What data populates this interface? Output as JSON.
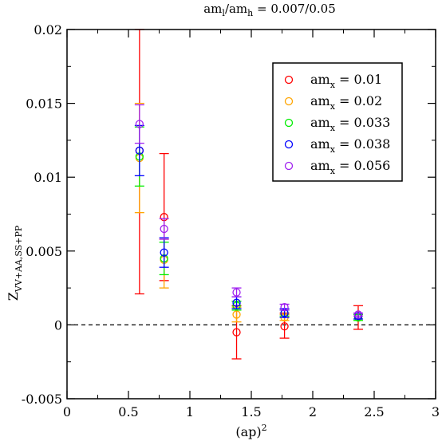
{
  "chart_data": {
    "type": "scatter",
    "title": {
      "prefix": "am",
      "sub1": "l",
      "mid": "/am",
      "sub2": "h",
      "suffix": " = 0.007/0.05"
    },
    "xlabel": {
      "base": "(ap)",
      "sup": "2"
    },
    "ylabel": {
      "base": "Z",
      "sub": "VV+AA,SS+PP"
    },
    "xlim": [
      0,
      3
    ],
    "ylim": [
      -0.005,
      0.02
    ],
    "x_ticks": [
      0,
      0.5,
      1,
      1.5,
      2,
      2.5,
      3
    ],
    "x_tick_labels": [
      "0",
      "0.5",
      "1",
      "1.5",
      "2",
      "2.5",
      "3"
    ],
    "y_ticks": [
      -0.005,
      0,
      0.005,
      0.01,
      0.015,
      0.02
    ],
    "y_tick_labels": [
      "-0.005",
      "0",
      "0.005",
      "0.01",
      "0.015",
      "0.02"
    ],
    "reference_line": {
      "y": 0,
      "style": "dashed"
    },
    "legend_position": "top-right",
    "series": [
      {
        "label_base": "am",
        "label_sub": "x",
        "label_value": " = 0.01",
        "color": "#ff0000",
        "points": [
          {
            "x": 0.59,
            "y": 0.0118,
            "err_lo": 0.0097,
            "err_hi": 0.0082
          },
          {
            "x": 0.79,
            "y": 0.0073,
            "err_lo": 0.0043,
            "err_hi": 0.0043
          },
          {
            "x": 1.38,
            "y": -0.0005,
            "err_lo": 0.0018,
            "err_hi": 0.0018
          },
          {
            "x": 1.77,
            "y": -0.0001,
            "err_lo": 0.0008,
            "err_hi": 0.0009
          },
          {
            "x": 2.37,
            "y": 0.0005,
            "err_lo": 0.0008,
            "err_hi": 0.0008
          }
        ]
      },
      {
        "label_base": "am",
        "label_sub": "x",
        "label_value": " = 0.02",
        "color": "#ffa500",
        "points": [
          {
            "x": 0.59,
            "y": 0.0113,
            "err_lo": 0.0037,
            "err_hi": 0.0037
          },
          {
            "x": 0.79,
            "y": 0.0044,
            "err_lo": 0.0019,
            "err_hi": 0.0014
          },
          {
            "x": 1.38,
            "y": 0.0007,
            "err_lo": 0.0005,
            "err_hi": 0.0005
          },
          {
            "x": 1.77,
            "y": 0.0005,
            "err_lo": 0.0002,
            "err_hi": 0.0002
          },
          {
            "x": 2.37,
            "y": 0.0005,
            "err_lo": 0.0002,
            "err_hi": 0.0002
          }
        ]
      },
      {
        "label_base": "am",
        "label_sub": "x",
        "label_value": " = 0.033",
        "color": "#00ee00",
        "points": [
          {
            "x": 0.59,
            "y": 0.0114,
            "err_lo": 0.002,
            "err_hi": 0.002
          },
          {
            "x": 0.79,
            "y": 0.0045,
            "err_lo": 0.0011,
            "err_hi": 0.0011
          },
          {
            "x": 1.38,
            "y": 0.0013,
            "err_lo": 0.0003,
            "err_hi": 0.0003
          },
          {
            "x": 1.77,
            "y": 0.0008,
            "err_lo": 0.0002,
            "err_hi": 0.0002
          },
          {
            "x": 2.37,
            "y": 0.0005,
            "err_lo": 0.0002,
            "err_hi": 0.0002
          }
        ]
      },
      {
        "label_base": "am",
        "label_sub": "x",
        "label_value": " = 0.038",
        "color": "#0000ff",
        "points": [
          {
            "x": 0.59,
            "y": 0.0118,
            "err_lo": 0.0017,
            "err_hi": 0.0017
          },
          {
            "x": 0.79,
            "y": 0.0049,
            "err_lo": 0.001,
            "err_hi": 0.001
          },
          {
            "x": 1.38,
            "y": 0.0015,
            "err_lo": 0.0004,
            "err_hi": 0.0004
          },
          {
            "x": 1.77,
            "y": 0.0008,
            "err_lo": 0.0003,
            "err_hi": 0.0003
          },
          {
            "x": 2.37,
            "y": 0.0006,
            "err_lo": 0.0002,
            "err_hi": 0.0002
          }
        ]
      },
      {
        "label_base": "am",
        "label_sub": "x",
        "label_value": " = 0.056",
        "color": "#a020f0",
        "points": [
          {
            "x": 0.59,
            "y": 0.0136,
            "err_lo": 0.0013,
            "err_hi": 0.0013
          },
          {
            "x": 0.79,
            "y": 0.0065,
            "err_lo": 0.0007,
            "err_hi": 0.0007
          },
          {
            "x": 1.38,
            "y": 0.0022,
            "err_lo": 0.0003,
            "err_hi": 0.0003
          },
          {
            "x": 1.77,
            "y": 0.0012,
            "err_lo": 0.0002,
            "err_hi": 0.0002
          },
          {
            "x": 2.37,
            "y": 0.0007,
            "err_lo": 0.0001,
            "err_hi": 0.0001
          }
        ]
      }
    ]
  }
}
